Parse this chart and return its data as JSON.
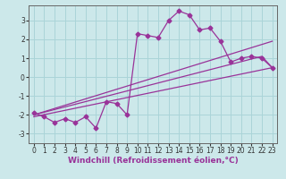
{
  "background_color": "#cce8ea",
  "grid_color": "#aad4d8",
  "line_color": "#993399",
  "marker_style": "D",
  "marker_size": 2.5,
  "line_width": 0.9,
  "xlabel": "Windchill (Refroidissement éolien,°C)",
  "xlabel_fontsize": 6.5,
  "xticks": [
    0,
    1,
    2,
    3,
    4,
    5,
    6,
    7,
    8,
    9,
    10,
    11,
    12,
    13,
    14,
    15,
    16,
    17,
    18,
    19,
    20,
    21,
    22,
    23
  ],
  "yticks": [
    -3,
    -2,
    -1,
    0,
    1,
    2,
    3
  ],
  "xlim": [
    -0.5,
    23.5
  ],
  "ylim": [
    -3.5,
    3.8
  ],
  "tick_fontsize": 5.5,
  "series1_x": [
    0,
    1,
    2,
    3,
    4,
    5,
    6,
    7,
    8,
    9,
    10,
    11,
    12,
    13,
    14,
    15,
    16,
    17,
    18,
    19,
    20,
    21,
    22,
    23
  ],
  "series1_y": [
    -1.9,
    -2.1,
    -2.4,
    -2.2,
    -2.4,
    -2.1,
    -2.7,
    -1.3,
    -1.4,
    -2.0,
    2.3,
    2.2,
    2.1,
    3.0,
    3.5,
    3.3,
    2.5,
    2.6,
    1.9,
    0.8,
    1.0,
    1.1,
    1.0,
    0.5
  ],
  "series2_x": [
    0,
    23
  ],
  "series2_y": [
    -2.1,
    0.5
  ],
  "series3_x": [
    0,
    23
  ],
  "series3_y": [
    -2.0,
    1.9
  ],
  "series4_x": [
    0,
    22,
    23
  ],
  "series4_y": [
    -2.0,
    1.1,
    0.5
  ]
}
